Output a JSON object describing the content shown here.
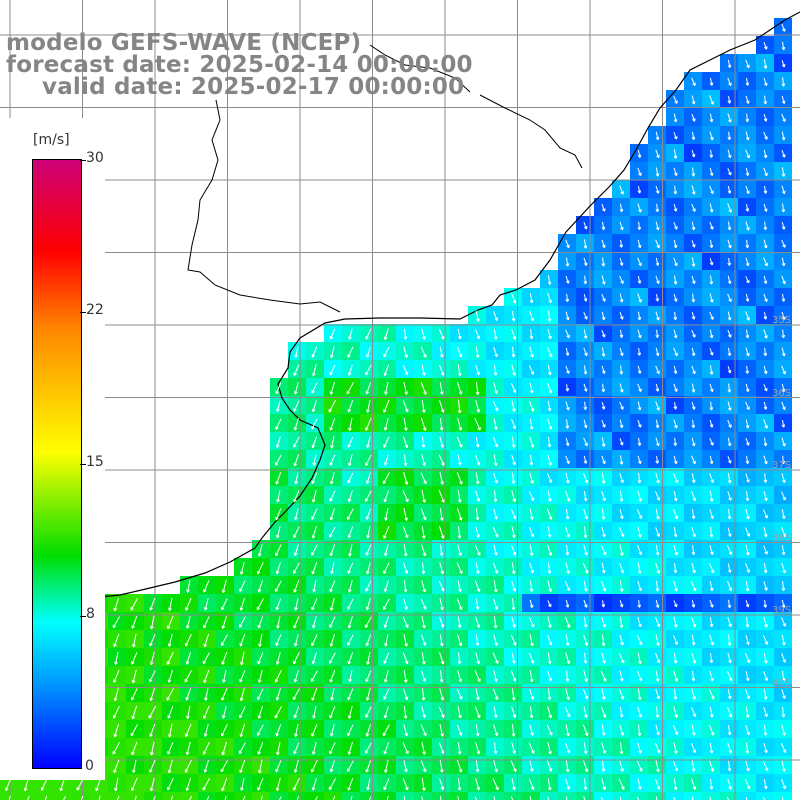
{
  "title": {
    "line1": "modelo GEFS-WAVE (NCEP)",
    "line2": "forecast date: 2025-02-14 00:00:00",
    "line3": "valid date: 2025-02-17 00:00:00"
  },
  "legend": {
    "units": "[m/s]",
    "ticks": [
      "30",
      "22",
      "15",
      "8",
      "0"
    ],
    "colors": [
      "#cc0077",
      "#ff0000",
      "#ff8800",
      "#ffff00",
      "#00dd00",
      "#00ffff",
      "#0099ff",
      "#0000ff"
    ]
  },
  "latitude_labels": [
    "35S",
    "36S",
    "37S",
    "38S",
    "39S",
    "40S"
  ],
  "colors": {
    "land": "#ffffff",
    "coast": "#000000",
    "grid": "#8c8c8c",
    "arrow": "#ffffff",
    "title": "#858585"
  }
}
